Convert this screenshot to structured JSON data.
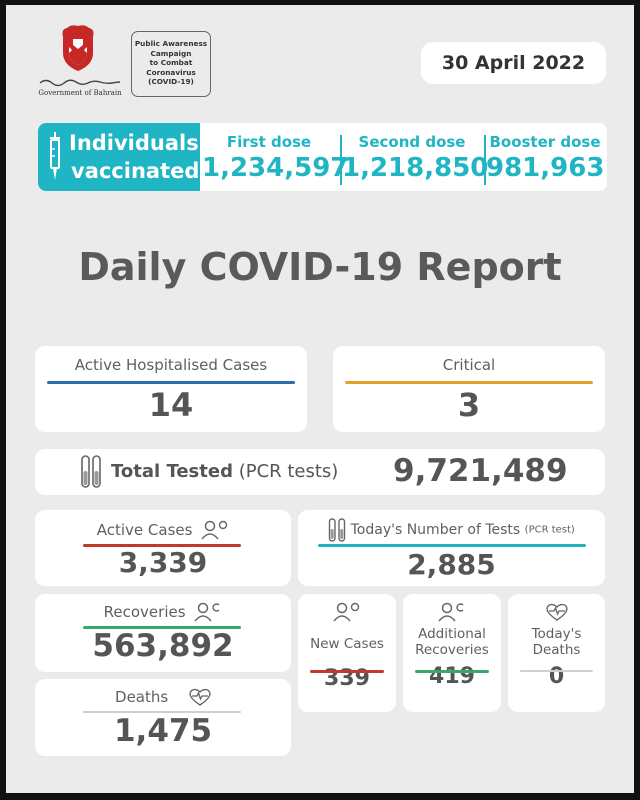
{
  "header": {
    "govt_logo_text": "Government of Bahrain",
    "campaign_badge": [
      "Public Awareness",
      "Campaign",
      "to Combat",
      "Coronavirus",
      "(COVID-19)"
    ],
    "date": "30 April 2022"
  },
  "vaccination": {
    "label_line1": "Individuals",
    "label_line2": "vaccinated",
    "first_dose_label": "First dose",
    "first_dose_value": "1,234,597",
    "second_dose_label": "Second dose",
    "second_dose_value": "1,218,850",
    "booster_dose_label": "Booster dose",
    "booster_dose_value": "981,963"
  },
  "title": "Daily COVID-19 Report",
  "hospitalised": {
    "label": "Active Hospitalised Cases",
    "value": "14"
  },
  "critical": {
    "label": "Critical",
    "value": "3"
  },
  "total_tested": {
    "label": "Total Tested",
    "label_suffix": "(PCR tests)",
    "value": "9,721,489"
  },
  "active_cases": {
    "label": "Active Cases",
    "value": "3,339"
  },
  "todays_tests": {
    "label": "Today's Number of Tests",
    "label_suffix": "(PCR test)",
    "value": "2,885"
  },
  "recoveries": {
    "label": "Recoveries",
    "value": "563,892"
  },
  "deaths": {
    "label": "Deaths",
    "value": "1,475"
  },
  "new_cases": {
    "label": "New Cases",
    "value": "339"
  },
  "additional_recoveries": {
    "label_line1": "Additional",
    "label_line2": "Recoveries",
    "value": "419"
  },
  "todays_deaths": {
    "label_line1": "Today's",
    "label_line2": "Deaths",
    "value": "0"
  },
  "colors": {
    "accent_teal": "#1fb5c4",
    "blue": "#2b6cb0",
    "orange": "#e6a02a",
    "red": "#c0392b",
    "green": "#3aa867",
    "gray_text": "#5f5f5f"
  },
  "icons": [
    "bahrain-emblem-icon",
    "syringe-icon",
    "test-tubes-icon",
    "person-alert-icon",
    "person-recovered-icon",
    "heartbeat-icon"
  ]
}
